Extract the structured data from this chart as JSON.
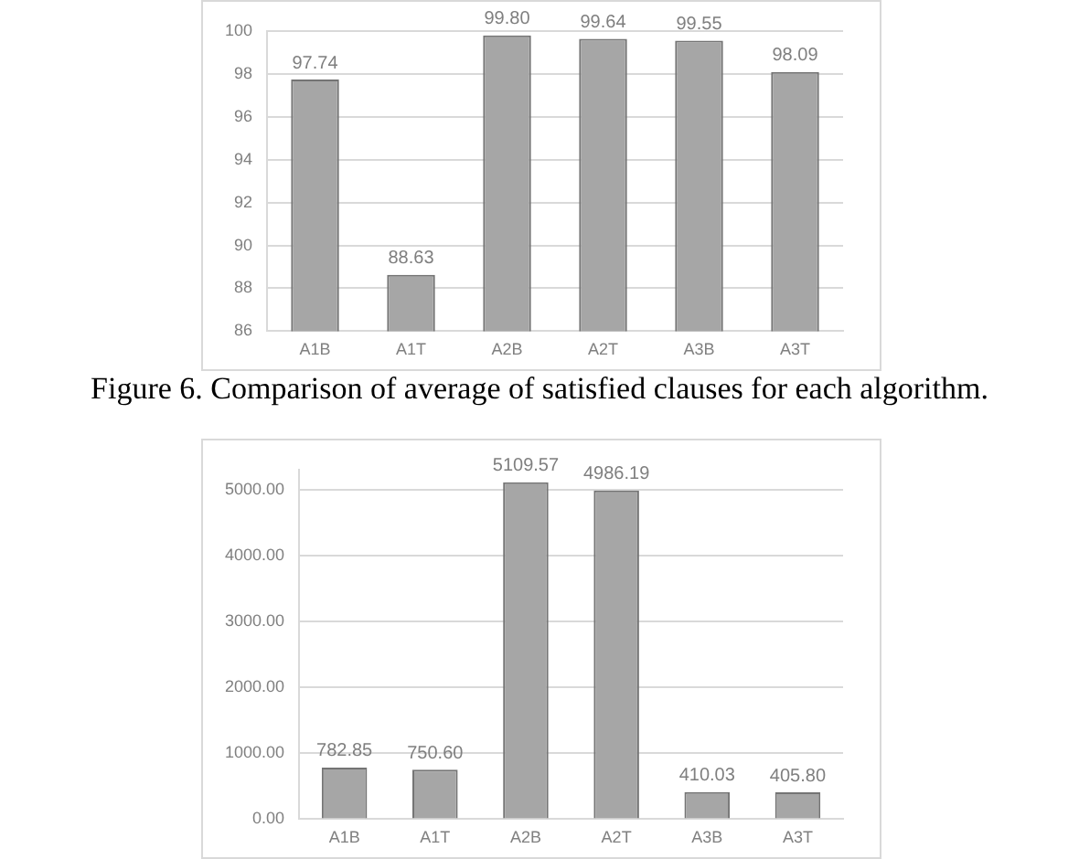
{
  "chart_data": [
    {
      "type": "bar",
      "categories": [
        "A1B",
        "A1T",
        "A2B",
        "A2T",
        "A3B",
        "A3T"
      ],
      "color": "#a6a6a6",
      "values": [
        97.74,
        88.63,
        99.8,
        99.64,
        99.55,
        98.09
      ],
      "value_labels": [
        "97.74",
        "88.63",
        "99.80",
        "99.64",
        "99.55",
        "98.09"
      ],
      "ylim": [
        86,
        100
      ],
      "yticks": [
        86,
        88,
        90,
        92,
        94,
        96,
        98,
        100
      ],
      "grid": "y",
      "annotations": [
        "Figure 6. Comparison of average of satisfied clauses for each algorithm."
      ]
    },
    {
      "type": "bar",
      "categories": [
        "A1B",
        "A1T",
        "A2B",
        "A2T",
        "A3B",
        "A3T"
      ],
      "color": "#a6a6a6",
      "values": [
        782.85,
        750.6,
        5109.57,
        4986.19,
        410.03,
        405.8
      ],
      "value_labels": [
        "782.85",
        "750.60",
        "5109.57",
        "4986.19",
        "410.03",
        "405.80"
      ],
      "ylim": [
        0,
        5300
      ],
      "yticks": [
        {
          "value": 0,
          "label": "0.00"
        },
        {
          "value": 1000,
          "label": "1000.00"
        },
        {
          "value": 2000,
          "label": "2000.00"
        },
        {
          "value": 3000,
          "label": "3000.00"
        },
        {
          "value": 4000,
          "label": "4000.00"
        },
        {
          "value": 5000,
          "label": "5000.00"
        }
      ],
      "grid": "y"
    }
  ]
}
